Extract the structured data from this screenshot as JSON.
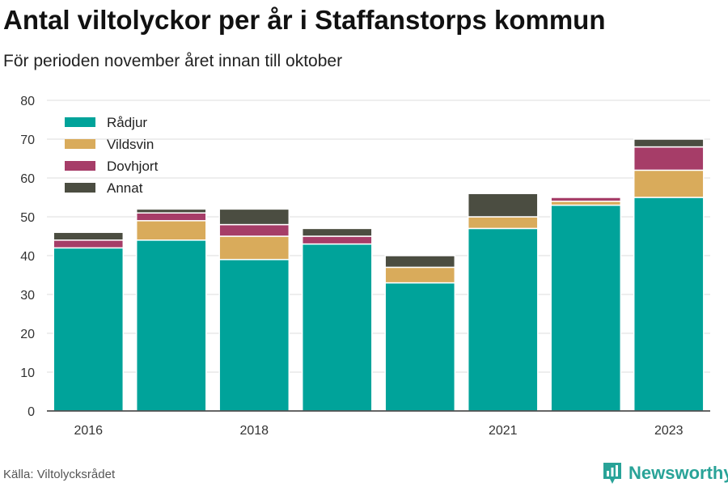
{
  "chart_data": {
    "type": "bar",
    "stacked": true,
    "title": "Antal viltolyckor per år i Staffanstorps kommun",
    "subtitle": "För perioden november året innan till oktober",
    "categories": [
      "2016",
      "2017",
      "2018",
      "2019",
      "2020",
      "2021",
      "2022",
      "2023"
    ],
    "x_tick_labels": [
      "2016",
      "",
      "2018",
      "",
      "",
      "2021",
      "",
      "2023"
    ],
    "series": [
      {
        "name": "Rådjur",
        "color": "#00a39a",
        "values": [
          42,
          44,
          39,
          43,
          33,
          47,
          53,
          55
        ]
      },
      {
        "name": "Vildsvin",
        "color": "#d9ab5b",
        "values": [
          0,
          5,
          6,
          0,
          4,
          3,
          1,
          7
        ]
      },
      {
        "name": "Dovhjort",
        "color": "#a63d68",
        "values": [
          2,
          2,
          3,
          2,
          0,
          0,
          1,
          6
        ]
      },
      {
        "name": "Annat",
        "color": "#4b4d41",
        "values": [
          2,
          1,
          4,
          2,
          3,
          6,
          0,
          2
        ]
      }
    ],
    "ylim": [
      0,
      80
    ],
    "yticks": [
      0,
      10,
      20,
      30,
      40,
      50,
      60,
      70,
      80
    ],
    "grid": true,
    "legend_position": "top-left"
  },
  "footer": {
    "source": "Källa: Viltolycksrådet",
    "brand": "Newsworthy",
    "brand_icon": "bar-chart-logo-icon"
  }
}
